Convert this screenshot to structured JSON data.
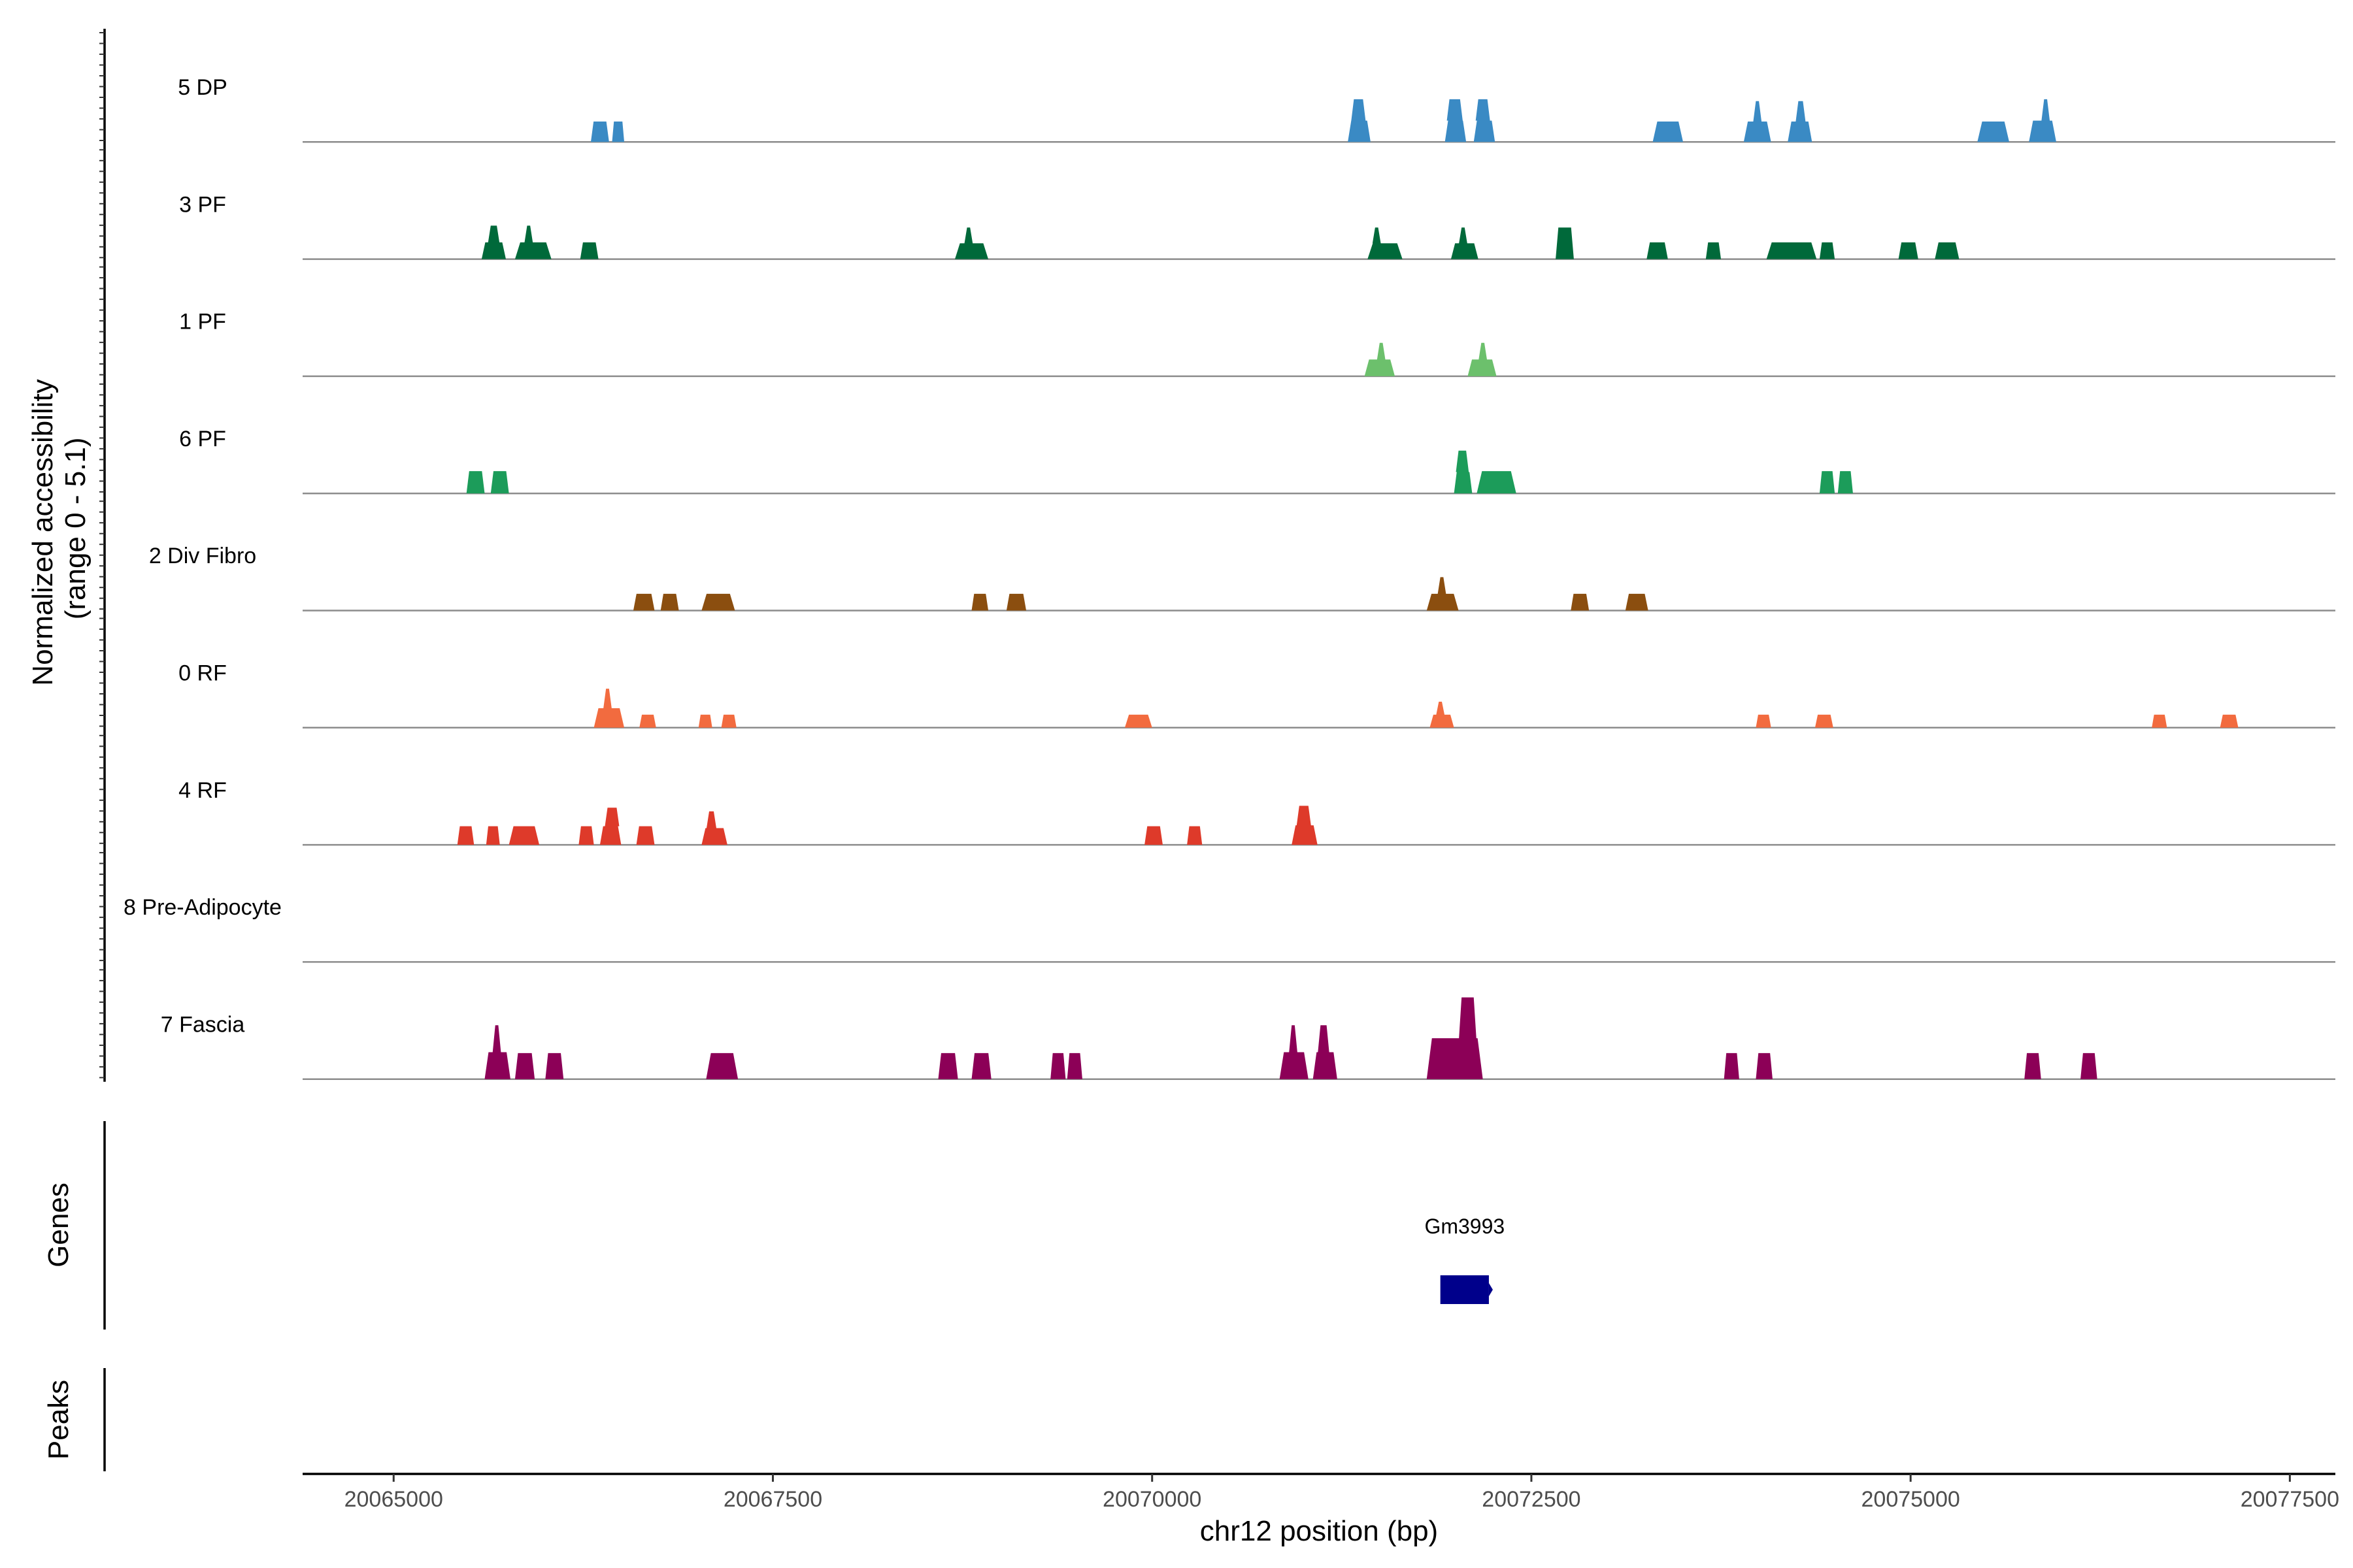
{
  "chart_data": {
    "type": "area",
    "title": "",
    "xlabel": "chr12 position (bp)",
    "ylabel": "Normalized accessibility\n(range 0 - 5.1)",
    "ylim": [
      0,
      5.1
    ],
    "xlim": [
      20064400,
      20077800
    ],
    "x_ticks": [
      20065000,
      20067500,
      20070000,
      20072500,
      20075000,
      20077500
    ],
    "x_tick_labels": [
      "20065000",
      "20067500",
      "20070000",
      "20072500",
      "20075000",
      "20077500"
    ],
    "series": [
      {
        "name": "5 DP",
        "color": "#3a8ac4",
        "peaks": [
          {
            "start": 20066300,
            "end": 20066420,
            "height": 1.1
          },
          {
            "start": 20066440,
            "end": 20066520,
            "height": 1.1
          },
          {
            "start": 20071290,
            "end": 20071440,
            "height": 2.3,
            "tip": [
              20071330,
              20071390
            ]
          },
          {
            "start": 20071930,
            "end": 20072070,
            "height": 2.3,
            "tip": [
              20071960,
              20072030
            ]
          },
          {
            "start": 20072120,
            "end": 20072260,
            "height": 2.3,
            "tip": [
              20072150,
              20072210
            ]
          },
          {
            "start": 20073300,
            "end": 20073500,
            "height": 1.1
          },
          {
            "start": 20073900,
            "end": 20074080,
            "height": 2.2,
            "tip": [
              20073980,
              20074000
            ]
          },
          {
            "start": 20074190,
            "end": 20074350,
            "height": 2.2,
            "tip": [
              20074260,
              20074290
            ]
          },
          {
            "start": 20075440,
            "end": 20075650,
            "height": 1.1
          },
          {
            "start": 20075780,
            "end": 20075960,
            "height": 2.3,
            "tip": [
              20075880,
              20075900
            ]
          }
        ]
      },
      {
        "name": "3 PF",
        "color": "#00693a",
        "peaks": [
          {
            "start": 20065580,
            "end": 20065740,
            "height": 1.8,
            "tip": [
              20065640,
              20065680
            ]
          },
          {
            "start": 20065800,
            "end": 20066040,
            "height": 1.8,
            "tip": [
              20065880,
              20065900
            ]
          },
          {
            "start": 20066230,
            "end": 20066350,
            "height": 0.9
          },
          {
            "start": 20068700,
            "end": 20068920,
            "height": 1.7,
            "tip": [
              20068780,
              20068800
            ]
          },
          {
            "start": 20071420,
            "end": 20071650,
            "height": 1.7,
            "tip": [
              20071470,
              20071490
            ]
          },
          {
            "start": 20071970,
            "end": 20072150,
            "height": 1.7,
            "tip": [
              20072040,
              20072060
            ]
          },
          {
            "start": 20072660,
            "end": 20072780,
            "height": 1.7
          },
          {
            "start": 20073260,
            "end": 20073400,
            "height": 0.9
          },
          {
            "start": 20073650,
            "end": 20073750,
            "height": 0.9
          },
          {
            "start": 20074050,
            "end": 20074380,
            "height": 0.9
          },
          {
            "start": 20074400,
            "end": 20074500,
            "height": 0.9
          },
          {
            "start": 20074920,
            "end": 20075050,
            "height": 0.9
          },
          {
            "start": 20075160,
            "end": 20075320,
            "height": 0.9
          }
        ]
      },
      {
        "name": "1 PF",
        "color": "#6cc06c",
        "peaks": [
          {
            "start": 20071400,
            "end": 20071600,
            "height": 1.8,
            "tip": [
              20071500,
              20071520
            ]
          },
          {
            "start": 20072080,
            "end": 20072270,
            "height": 1.8,
            "tip": [
              20072170,
              20072190
            ]
          }
        ]
      },
      {
        "name": "6 PF",
        "color": "#1c9c5a",
        "peaks": [
          {
            "start": 20065480,
            "end": 20065600,
            "height": 1.2
          },
          {
            "start": 20065640,
            "end": 20065760,
            "height": 1.2
          },
          {
            "start": 20071990,
            "end": 20072110,
            "height": 2.3,
            "tip": [
              20072020,
              20072070
            ]
          },
          {
            "start": 20072140,
            "end": 20072400,
            "height": 1.2
          },
          {
            "start": 20074400,
            "end": 20074500,
            "height": 1.2
          },
          {
            "start": 20074520,
            "end": 20074620,
            "height": 1.2
          }
        ]
      },
      {
        "name": "2 Div Fibro",
        "color": "#8b4e0f",
        "peaks": [
          {
            "start": 20066580,
            "end": 20066720,
            "height": 0.9
          },
          {
            "start": 20066760,
            "end": 20066880,
            "height": 0.9
          },
          {
            "start": 20067030,
            "end": 20067250,
            "height": 0.9
          },
          {
            "start": 20068810,
            "end": 20068920,
            "height": 0.9
          },
          {
            "start": 20069040,
            "end": 20069170,
            "height": 0.9
          },
          {
            "start": 20071810,
            "end": 20072020,
            "height": 1.8,
            "tip": [
              20071900,
              20071920
            ]
          },
          {
            "start": 20072760,
            "end": 20072880,
            "height": 0.9
          },
          {
            "start": 20073120,
            "end": 20073270,
            "height": 0.9
          }
        ]
      },
      {
        "name": "0 RF",
        "color": "#f26b3f",
        "peaks": [
          {
            "start": 20066320,
            "end": 20066520,
            "height": 2.1,
            "tip": [
              20066400,
              20066420
            ]
          },
          {
            "start": 20066620,
            "end": 20066730,
            "height": 0.7
          },
          {
            "start": 20067010,
            "end": 20067100,
            "height": 0.7
          },
          {
            "start": 20067160,
            "end": 20067260,
            "height": 0.7
          },
          {
            "start": 20069820,
            "end": 20070000,
            "height": 0.7
          },
          {
            "start": 20071830,
            "end": 20071990,
            "height": 1.4,
            "tip": [
              20071890,
              20071910
            ]
          },
          {
            "start": 20073980,
            "end": 20074080,
            "height": 0.7
          },
          {
            "start": 20074370,
            "end": 20074490,
            "height": 0.7
          },
          {
            "start": 20076590,
            "end": 20076690,
            "height": 0.7
          },
          {
            "start": 20077040,
            "end": 20077160,
            "height": 0.7
          }
        ]
      },
      {
        "name": "4 RF",
        "color": "#de3a2a",
        "peaks": [
          {
            "start": 20065420,
            "end": 20065530,
            "height": 1.0
          },
          {
            "start": 20065610,
            "end": 20065700,
            "height": 1.0
          },
          {
            "start": 20065760,
            "end": 20065960,
            "height": 1.0
          },
          {
            "start": 20066220,
            "end": 20066320,
            "height": 1.0
          },
          {
            "start": 20066360,
            "end": 20066500,
            "height": 2.0,
            "tip": [
              20066410,
              20066470
            ]
          },
          {
            "start": 20066600,
            "end": 20066720,
            "height": 1.0
          },
          {
            "start": 20067030,
            "end": 20067200,
            "height": 1.8,
            "tip": [
              20067080,
              20067110
            ]
          },
          {
            "start": 20069950,
            "end": 20070070,
            "height": 1.0
          },
          {
            "start": 20070230,
            "end": 20070330,
            "height": 1.0
          },
          {
            "start": 20070920,
            "end": 20071090,
            "height": 2.1,
            "tip": [
              20070970,
              20071030
            ]
          }
        ]
      },
      {
        "name": "8 Pre-Adipocyte",
        "color": "#808080",
        "peaks": []
      },
      {
        "name": "7 Fascia",
        "color": "#8c0057",
        "peaks": [
          {
            "start": 20065600,
            "end": 20065770,
            "height": 2.9,
            "tip": [
              20065670,
              20065690
            ]
          },
          {
            "start": 20065800,
            "end": 20065930,
            "height": 1.4
          },
          {
            "start": 20066000,
            "end": 20066120,
            "height": 1.4
          },
          {
            "start": 20067060,
            "end": 20067270,
            "height": 1.4
          },
          {
            "start": 20068590,
            "end": 20068720,
            "height": 1.4
          },
          {
            "start": 20068810,
            "end": 20068940,
            "height": 1.4
          },
          {
            "start": 20069330,
            "end": 20069430,
            "height": 1.4
          },
          {
            "start": 20069440,
            "end": 20069540,
            "height": 1.4
          },
          {
            "start": 20070840,
            "end": 20071030,
            "height": 2.9,
            "tip": [
              20070920,
              20070940
            ]
          },
          {
            "start": 20071060,
            "end": 20071220,
            "height": 2.9,
            "tip": [
              20071110,
              20071150
            ]
          },
          {
            "start": 20071810,
            "end": 20072180,
            "height": 4.4,
            "tip": [
              20072040,
              20072120
            ]
          },
          {
            "start": 20073770,
            "end": 20073870,
            "height": 1.4
          },
          {
            "start": 20073980,
            "end": 20074090,
            "height": 1.4
          },
          {
            "start": 20075750,
            "end": 20075860,
            "height": 1.4
          },
          {
            "start": 20076120,
            "end": 20076230,
            "height": 1.4
          }
        ]
      }
    ],
    "genes_track": {
      "label": "Genes",
      "genes": [
        {
          "name": "Gm3993",
          "start": 20071900,
          "end": 20072220,
          "strand": "+",
          "color": "#00008b"
        }
      ]
    },
    "peaks_track": {
      "label": "Peaks",
      "peaks": []
    }
  }
}
